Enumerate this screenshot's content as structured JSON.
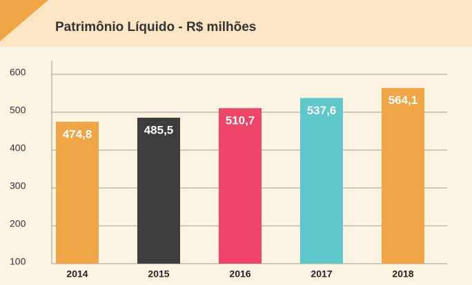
{
  "chart_data": {
    "type": "bar",
    "title": "Patrimônio Líquido - R$ milhões",
    "categories": [
      "2014",
      "2015",
      "2016",
      "2017",
      "2018"
    ],
    "values": [
      474.8,
      485.5,
      510.7,
      537.6,
      564.1
    ],
    "value_labels": [
      "474,8",
      "485,5",
      "510,7",
      "537,6",
      "564,1"
    ],
    "colors": [
      "#f0a647",
      "#3d3d3d",
      "#ee4468",
      "#5ec7cb",
      "#f0a647"
    ],
    "ylim": [
      100,
      600
    ],
    "yticks": [
      100,
      200,
      300,
      400,
      500,
      600
    ],
    "grid": true
  }
}
